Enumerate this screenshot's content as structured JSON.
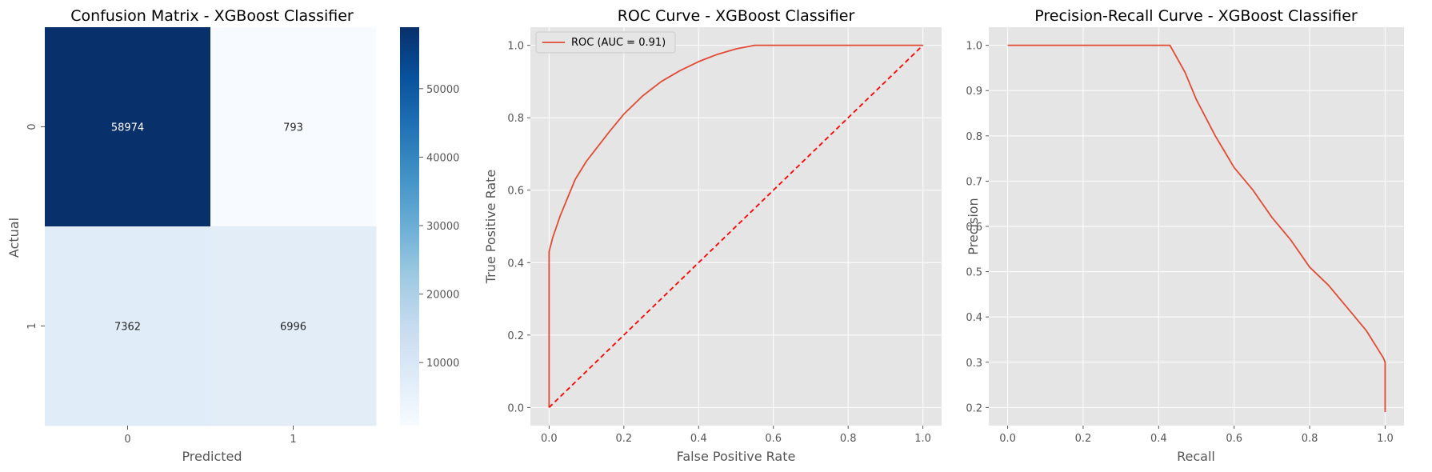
{
  "chart_data": [
    {
      "type": "heatmap",
      "title": "Confusion Matrix - XGBoost Classifier",
      "xlabel": "Predicted",
      "ylabel": "Actual",
      "x_categories": [
        "0",
        "1"
      ],
      "y_categories": [
        "0",
        "1"
      ],
      "values": [
        [
          58974,
          793
        ],
        [
          7362,
          6996
        ]
      ],
      "colormap": "Blues",
      "colorbar": {
        "range": [
          793,
          58974
        ],
        "ticks": [
          10000,
          20000,
          30000,
          40000,
          50000
        ]
      }
    },
    {
      "type": "line",
      "title": "ROC Curve - XGBoost Classifier",
      "xlabel": "False Positive Rate",
      "ylabel": "True Positive Rate",
      "xlim": [
        -0.05,
        1.05
      ],
      "ylim": [
        -0.05,
        1.05
      ],
      "xticks": [
        0.0,
        0.2,
        0.4,
        0.6,
        0.8,
        1.0
      ],
      "yticks": [
        0.0,
        0.2,
        0.4,
        0.6,
        0.8,
        1.0
      ],
      "grid": true,
      "legend": "upper-left",
      "series": [
        {
          "name": "ROC (AUC = 0.91)",
          "color": "#e24a33",
          "dash": false,
          "x": [
            0.0,
            0.0,
            0.0,
            0.005,
            0.01,
            0.02,
            0.03,
            0.05,
            0.07,
            0.1,
            0.13,
            0.16,
            0.2,
            0.25,
            0.3,
            0.35,
            0.4,
            0.45,
            0.5,
            0.55,
            0.6,
            0.7,
            0.8,
            0.9,
            1.0
          ],
          "y": [
            0.0,
            0.2,
            0.43,
            0.45,
            0.47,
            0.5,
            0.53,
            0.58,
            0.63,
            0.68,
            0.72,
            0.76,
            0.81,
            0.86,
            0.9,
            0.93,
            0.955,
            0.975,
            0.99,
            1.0,
            1.0,
            1.0,
            1.0,
            1.0,
            1.0
          ]
        },
        {
          "name": "",
          "color": "#ff0000",
          "dash": true,
          "x": [
            0.0,
            1.0
          ],
          "y": [
            0.0,
            1.0
          ]
        }
      ]
    },
    {
      "type": "line",
      "title": "Precision-Recall Curve - XGBoost Classifier",
      "xlabel": "Recall",
      "ylabel": "Precision",
      "xlim": [
        -0.05,
        1.05
      ],
      "ylim": [
        0.16,
        1.04
      ],
      "xticks": [
        0.0,
        0.2,
        0.4,
        0.6,
        0.8,
        1.0
      ],
      "yticks": [
        0.2,
        0.3,
        0.4,
        0.5,
        0.6,
        0.7,
        0.8,
        0.9,
        1.0
      ],
      "grid": true,
      "series": [
        {
          "name": "",
          "color": "#e24a33",
          "dash": false,
          "x": [
            0.0,
            0.2,
            0.43,
            0.45,
            0.47,
            0.5,
            0.55,
            0.6,
            0.65,
            0.7,
            0.75,
            0.8,
            0.85,
            0.9,
            0.95,
            0.98,
            0.995,
            1.0,
            1.0
          ],
          "y": [
            1.0,
            1.0,
            1.0,
            0.97,
            0.94,
            0.88,
            0.8,
            0.73,
            0.68,
            0.62,
            0.57,
            0.51,
            0.47,
            0.42,
            0.37,
            0.33,
            0.31,
            0.3,
            0.19
          ]
        }
      ]
    }
  ]
}
